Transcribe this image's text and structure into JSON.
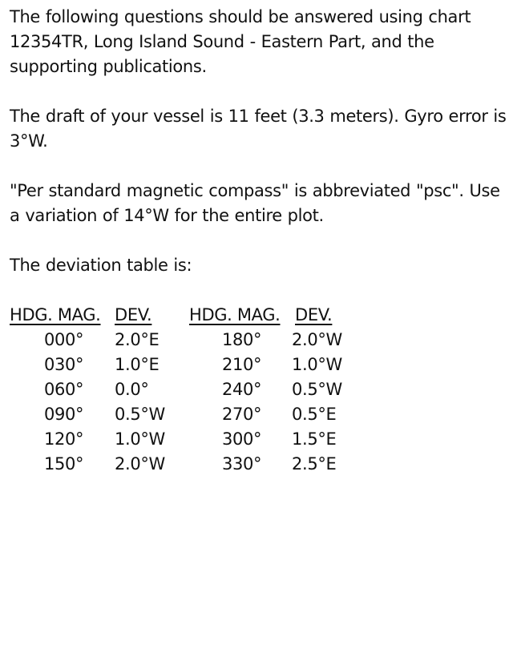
{
  "paragraphs": [
    "The following questions should be answered using chart 12354TR, Long Island Sound - Eastern Part, and the supporting publications.",
    "The draft of your vessel is 11 feet (3.3 meters). Gyro error is 3°W.",
    "\"Per standard magnetic compass\" is abbreviated \"psc\". Use a variation of 14°W for the entire plot.",
    "The deviation table is:"
  ],
  "deviation_table": {
    "headers": [
      "HDG. MAG.",
      "DEV.",
      "HDG. MAG.",
      "DEV."
    ],
    "rows": [
      [
        "000°",
        "2.0°E",
        "180°",
        "2.0°W"
      ],
      [
        "030°",
        "1.0°E",
        "210°",
        "1.0°W"
      ],
      [
        "060°",
        "0.0°",
        "240°",
        "0.5°W"
      ],
      [
        "090°",
        "0.5°W",
        "270°",
        "0.5°E"
      ],
      [
        "120°",
        "1.0°W",
        "300°",
        "1.5°E"
      ],
      [
        "150°",
        "2.0°W",
        "330°",
        "2.5°E"
      ]
    ]
  }
}
